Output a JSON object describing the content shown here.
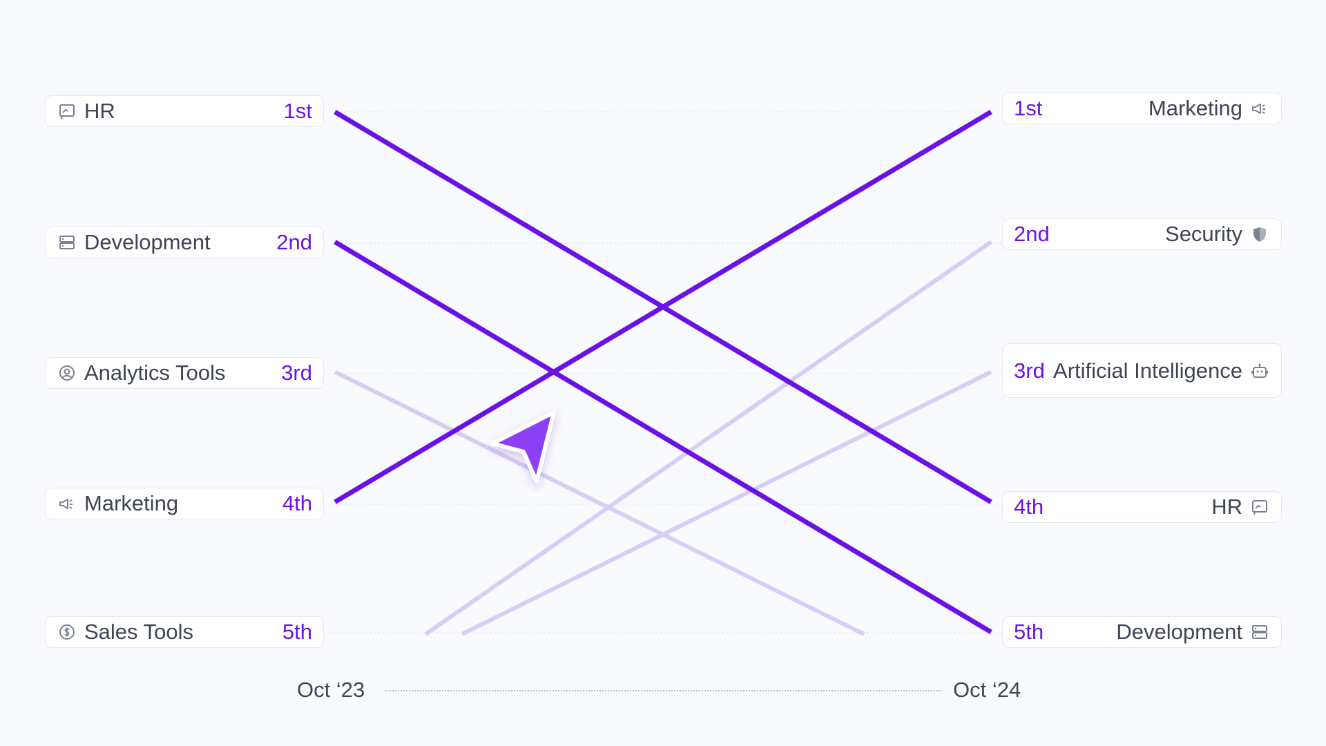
{
  "chart_data": {
    "type": "line",
    "x": [
      "Oct ‘23",
      "Oct ‘24"
    ],
    "rank_labels": [
      "1st",
      "2nd",
      "3rd",
      "4th",
      "5th"
    ],
    "start": [
      {
        "label": "HR",
        "rank": "1st",
        "icon": "chat-board-icon"
      },
      {
        "label": "Development",
        "rank": "2nd",
        "icon": "server-icon"
      },
      {
        "label": "Analytics Tools",
        "rank": "3rd",
        "icon": "user-circle-icon"
      },
      {
        "label": "Marketing",
        "rank": "4th",
        "icon": "megaphone-icon"
      },
      {
        "label": "Sales Tools",
        "rank": "5th",
        "icon": "dollar-circle-icon"
      }
    ],
    "end": [
      {
        "label": "Marketing",
        "rank": "1st",
        "icon": "megaphone-icon"
      },
      {
        "label": "Security",
        "rank": "2nd",
        "icon": "shield-icon"
      },
      {
        "label": "Artificial Intelligence",
        "rank": "3rd",
        "icon": "robot-icon"
      },
      {
        "label": "HR",
        "rank": "4th",
        "icon": "chat-board-icon"
      },
      {
        "label": "Development",
        "rank": "5th",
        "icon": "server-icon"
      }
    ],
    "series": [
      {
        "name": "HR",
        "values": [
          1,
          4
        ],
        "highlight": true
      },
      {
        "name": "Development",
        "values": [
          2,
          5
        ],
        "highlight": true
      },
      {
        "name": "Marketing",
        "values": [
          4,
          1
        ],
        "highlight": true
      },
      {
        "name": "Analytics Tools",
        "values": [
          3,
          5.5
        ],
        "highlight": false
      },
      {
        "name": "Security",
        "values": [
          5.5,
          2
        ],
        "highlight": false
      },
      {
        "name": "Artificial Intelligence",
        "values": [
          5.5,
          3
        ],
        "highlight": false
      }
    ],
    "ylim": [
      1,
      5
    ],
    "grid": true,
    "colors": {
      "highlight": "#6a12e6",
      "faded": "#d9ccf6",
      "rank": "#6a12e6",
      "cursor": "#8b3ff5"
    }
  }
}
